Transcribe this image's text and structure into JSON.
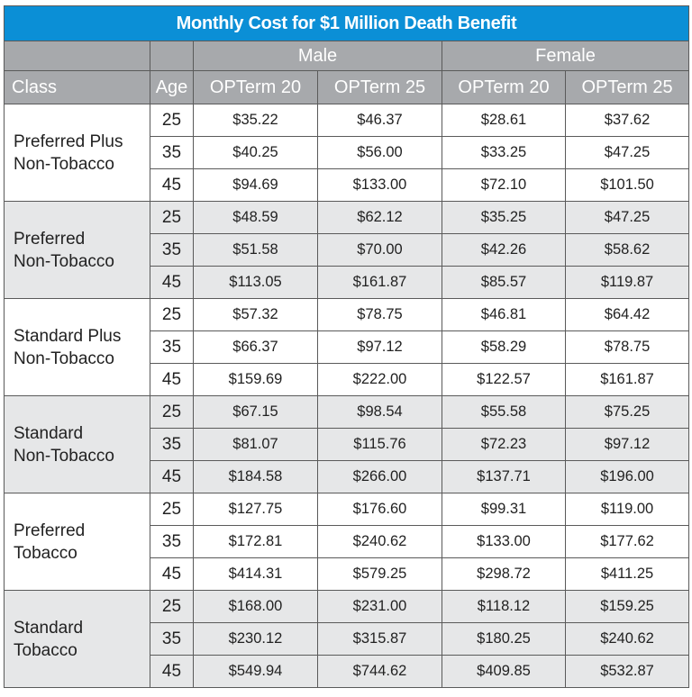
{
  "title": "Monthly Cost for $1 Million Death Benefit",
  "header": {
    "male": "Male",
    "female": "Female",
    "class": "Class",
    "age": "Age",
    "cols": [
      "OPTerm 20",
      "OPTerm 25",
      "OPTerm 20",
      "OPTerm 25"
    ]
  },
  "groups": [
    {
      "class_lines": [
        "Preferred Plus",
        "Non-Tobacco"
      ],
      "rows": [
        {
          "age": "25",
          "values": [
            "$35.22",
            "$46.37",
            "$28.61",
            "$37.62"
          ]
        },
        {
          "age": "35",
          "values": [
            "$40.25",
            "$56.00",
            "$33.25",
            "$47.25"
          ]
        },
        {
          "age": "45",
          "values": [
            "$94.69",
            "$133.00",
            "$72.10",
            "$101.50"
          ]
        }
      ]
    },
    {
      "class_lines": [
        "Preferred",
        "Non-Tobacco"
      ],
      "rows": [
        {
          "age": "25",
          "values": [
            "$48.59",
            "$62.12",
            "$35.25",
            "$47.25"
          ]
        },
        {
          "age": "35",
          "values": [
            "$51.58",
            "$70.00",
            "$42.26",
            "$58.62"
          ]
        },
        {
          "age": "45",
          "values": [
            "$113.05",
            "$161.87",
            "$85.57",
            "$119.87"
          ]
        }
      ]
    },
    {
      "class_lines": [
        "Standard Plus",
        "Non-Tobacco"
      ],
      "rows": [
        {
          "age": "25",
          "values": [
            "$57.32",
            "$78.75",
            "$46.81",
            "$64.42"
          ]
        },
        {
          "age": "35",
          "values": [
            "$66.37",
            "$97.12",
            "$58.29",
            "$78.75"
          ]
        },
        {
          "age": "45",
          "values": [
            "$159.69",
            "$222.00",
            "$122.57",
            "$161.87"
          ]
        }
      ]
    },
    {
      "class_lines": [
        "Standard",
        "Non-Tobacco"
      ],
      "rows": [
        {
          "age": "25",
          "values": [
            "$67.15",
            "$98.54",
            "$55.58",
            "$75.25"
          ]
        },
        {
          "age": "35",
          "values": [
            "$81.07",
            "$115.76",
            "$72.23",
            "$97.12"
          ]
        },
        {
          "age": "45",
          "values": [
            "$184.58",
            "$266.00",
            "$137.71",
            "$196.00"
          ]
        }
      ]
    },
    {
      "class_lines": [
        "Preferred",
        "Tobacco"
      ],
      "rows": [
        {
          "age": "25",
          "values": [
            "$127.75",
            "$176.60",
            "$99.31",
            "$119.00"
          ]
        },
        {
          "age": "35",
          "values": [
            "$172.81",
            "$240.62",
            "$133.00",
            "$177.62"
          ]
        },
        {
          "age": "45",
          "values": [
            "$414.31",
            "$579.25",
            "$298.72",
            "$411.25"
          ]
        }
      ]
    },
    {
      "class_lines": [
        "Standard",
        "Tobacco"
      ],
      "rows": [
        {
          "age": "25",
          "values": [
            "$168.00",
            "$231.00",
            "$118.12",
            "$159.25"
          ]
        },
        {
          "age": "35",
          "values": [
            "$230.12",
            "$315.87",
            "$180.25",
            "$240.62"
          ]
        },
        {
          "age": "45",
          "values": [
            "$549.94",
            "$744.62",
            "$409.85",
            "$532.87"
          ]
        }
      ]
    }
  ]
}
